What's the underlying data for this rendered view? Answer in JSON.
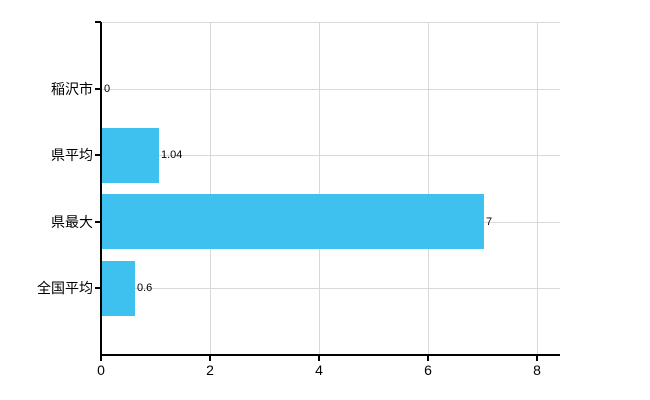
{
  "chart_data": {
    "type": "bar",
    "orientation": "horizontal",
    "title": "",
    "categories": [
      "稲沢市",
      "県平均",
      "県最大",
      "全国平均"
    ],
    "values": [
      0,
      1.04,
      7,
      0.6
    ],
    "value_labels": [
      "0",
      "1.04",
      "7",
      "0.6"
    ],
    "series": [
      {
        "name": "",
        "values": [
          0,
          1.04,
          7,
          0.6
        ]
      }
    ],
    "x_ticks": [
      0,
      2,
      4,
      6,
      8
    ],
    "x_tick_labels": [
      "0",
      "2",
      "4",
      "6",
      "8"
    ],
    "xlim": [
      0,
      8
    ],
    "xlabel": "",
    "ylabel": "",
    "legend": "none",
    "grid": "on",
    "colors": {
      "bar": "#3fc1f0",
      "grid": "#d9d9d9",
      "axis": "#000000",
      "text": "#000000",
      "background": "#ffffff"
    }
  }
}
